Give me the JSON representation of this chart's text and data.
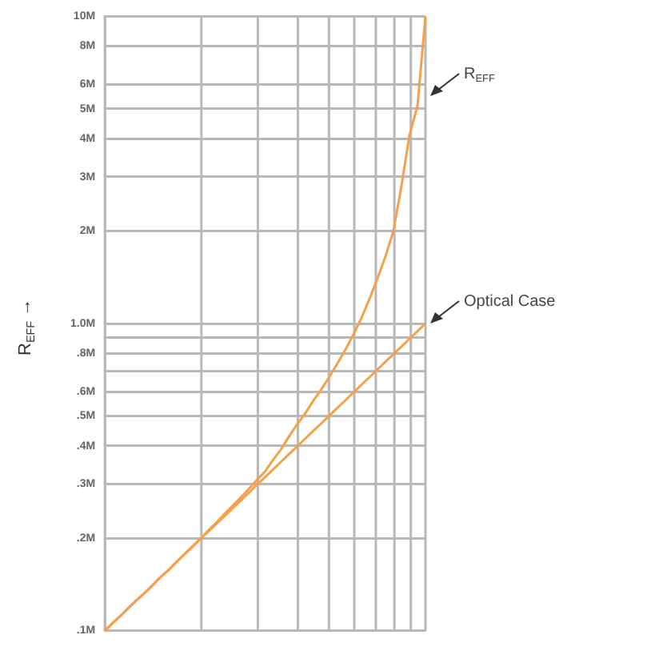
{
  "chart_data": {
    "type": "line",
    "ylabel": "R$_{EFF}$ →",
    "log": "y",
    "grid": true,
    "tick_labels": "y",
    "marker": "none",
    "line_style": "solid",
    "categories": [
      null,
      null,
      null,
      null,
      null,
      null,
      null,
      null,
      null,
      null,
      null,
      null,
      null,
      null,
      null,
      null,
      null,
      null,
      null,
      null,
      null,
      null,
      null,
      null,
      null,
      null,
      null,
      null,
      null,
      null,
      null,
      null,
      null,
      null,
      null,
      null,
      null,
      null,
      null,
      null,
      null
    ],
    "ylim": [
      0.1,
      10
    ],
    "yticks": [
      {
        "value": 0.1,
        "label": ".1M"
      },
      {
        "value": 0.2,
        "label": ".2M"
      },
      {
        "value": 0.3,
        "label": ".3M"
      },
      {
        "value": 0.4,
        "label": ".4M"
      },
      {
        "value": 0.5,
        "label": ".5M"
      },
      {
        "value": 0.6,
        "label": ".6M"
      },
      {
        "value": 0.7,
        "label": null
      },
      {
        "value": 0.8,
        "label": ".8M"
      },
      {
        "value": 0.9,
        "label": null
      },
      {
        "value": 1,
        "label": "1.0M"
      },
      {
        "value": 2,
        "label": "2M"
      },
      {
        "value": 3,
        "label": "3M"
      },
      {
        "value": 4,
        "label": "4M"
      },
      {
        "value": 5,
        "label": "5M"
      },
      {
        "value": 6,
        "label": "6M"
      },
      {
        "value": 8,
        "label": "8M"
      },
      {
        "value": 10,
        "label": "10M"
      }
    ],
    "series": [
      {
        "color": "#f5a04a",
        "values": [
          0.1,
          0.106,
          0.112,
          0.119,
          0.126,
          0.133,
          0.141,
          0.15,
          0.158,
          0.168,
          0.178,
          0.189,
          0.2,
          0.213,
          0.226,
          0.241,
          0.256,
          0.272,
          0.29,
          0.31,
          0.33,
          0.36,
          0.39,
          0.43,
          0.47,
          0.51,
          0.56,
          0.61,
          0.67,
          0.74,
          0.82,
          0.92,
          1.04,
          1.2,
          1.4,
          1.65,
          2.0,
          2.8,
          4.1,
          5.1,
          10
        ]
      },
      {
        "color": "#f5a04a",
        "values": [
          0.1,
          0.106,
          0.112,
          0.119,
          0.126,
          0.133,
          0.141,
          0.15,
          0.158,
          0.168,
          0.178,
          0.188,
          0.2,
          0.211,
          0.224,
          0.237,
          0.251,
          0.266,
          0.282,
          0.299,
          0.316,
          0.335,
          0.355,
          0.376,
          0.398,
          0.422,
          0.447,
          0.473,
          0.501,
          0.531,
          0.562,
          0.596,
          0.631,
          0.668,
          0.708,
          0.75,
          0.794,
          0.841,
          0.891,
          0.944,
          1.0
        ]
      }
    ],
    "annotations": [
      "R$_{EFF}$",
      "Optical Case"
    ]
  }
}
